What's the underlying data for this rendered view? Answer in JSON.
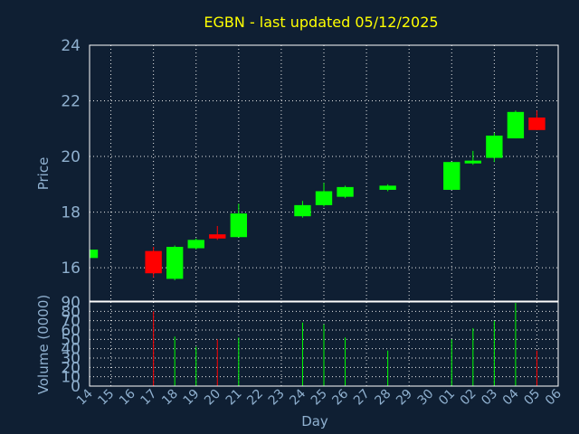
{
  "chart_data": {
    "type": "candlestick",
    "title": "EGBN - last updated 05/12/2025",
    "xlabel": "Day",
    "price_ylabel": "Price",
    "volume_ylabel": "Volume (0000)",
    "price_ylim": [
      14.8,
      24
    ],
    "price_yticks": [
      16,
      18,
      20,
      22,
      24
    ],
    "volume_ylim": [
      0,
      90
    ],
    "volume_yticks": [
      0,
      10,
      20,
      30,
      40,
      50,
      60,
      70,
      80,
      90
    ],
    "day_labels": [
      "14",
      "15",
      "16",
      "17",
      "18",
      "19",
      "20",
      "21",
      "22",
      "23",
      "24",
      "25",
      "26",
      "27",
      "28",
      "29",
      "30",
      "01",
      "02",
      "03",
      "04",
      "05",
      "06"
    ],
    "colors": {
      "up": "#00ff00",
      "down": "#ff0000",
      "title": "#ffff00",
      "background": "#0f1f33"
    },
    "candles": [
      {
        "day": "14",
        "open": 16.35,
        "close": 16.65,
        "high": 16.65,
        "low": 16.35,
        "volume": null
      },
      {
        "day": "17",
        "open": 16.6,
        "close": 15.8,
        "high": 16.75,
        "low": 15.65,
        "volume": 80
      },
      {
        "day": "18",
        "open": 15.6,
        "close": 16.75,
        "high": 16.8,
        "low": 15.55,
        "volume": 53
      },
      {
        "day": "19",
        "open": 16.7,
        "close": 17.0,
        "high": 17.05,
        "low": 16.65,
        "volume": 42
      },
      {
        "day": "20",
        "open": 17.2,
        "close": 17.05,
        "high": 17.5,
        "low": 17.0,
        "volume": 50
      },
      {
        "day": "21",
        "open": 17.1,
        "close": 17.95,
        "high": 18.3,
        "low": 17.1,
        "volume": 52
      },
      {
        "day": "24",
        "open": 17.85,
        "close": 18.25,
        "high": 18.4,
        "low": 17.8,
        "volume": 68
      },
      {
        "day": "25",
        "open": 18.25,
        "close": 18.75,
        "high": 19.05,
        "low": 18.2,
        "volume": 66
      },
      {
        "day": "26",
        "open": 18.55,
        "close": 18.9,
        "high": 18.95,
        "low": 18.5,
        "volume": 52
      },
      {
        "day": "28",
        "open": 18.8,
        "close": 18.95,
        "high": 19.0,
        "low": 18.75,
        "volume": 38
      },
      {
        "day": "01",
        "open": 18.8,
        "close": 19.8,
        "high": 19.8,
        "low": 18.8,
        "volume": 50
      },
      {
        "day": "02",
        "open": 19.75,
        "close": 19.85,
        "high": 20.2,
        "low": 19.7,
        "volume": 62
      },
      {
        "day": "03",
        "open": 19.95,
        "close": 20.75,
        "high": 20.85,
        "low": 19.8,
        "volume": 70
      },
      {
        "day": "04",
        "open": 20.65,
        "close": 21.6,
        "high": 21.65,
        "low": 20.65,
        "volume": 89
      },
      {
        "day": "05",
        "open": 21.4,
        "close": 20.95,
        "high": 21.65,
        "low": 20.95,
        "volume": 38
      }
    ]
  }
}
